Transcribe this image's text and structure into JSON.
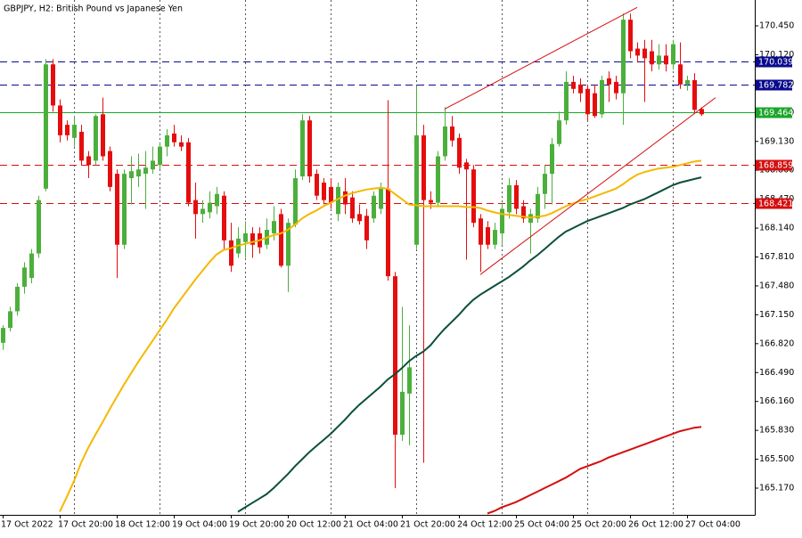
{
  "chart_data": {
    "type": "candlestick",
    "title": "GBPJPY, H2:  British Pound vs Japanese Yen",
    "categories": [
      "17 Oct 2022",
      null,
      null,
      null,
      null,
      null,
      null,
      null,
      "17 Oct 20:00",
      null,
      null,
      null,
      null,
      null,
      null,
      null,
      "18 Oct 12:00",
      null,
      null,
      null,
      null,
      null,
      null,
      null,
      "19 Oct 04:00",
      null,
      null,
      null,
      null,
      null,
      null,
      null,
      "19 Oct 20:00",
      null,
      null,
      null,
      null,
      null,
      null,
      null,
      "20 Oct 12:00",
      null,
      null,
      null,
      null,
      null,
      null,
      null,
      "21 Oct 04:00",
      null,
      null,
      null,
      null,
      null,
      null,
      null,
      "21 Oct 20:00",
      null,
      null,
      null,
      null,
      null,
      null,
      null,
      "24 Oct 12:00",
      null,
      null,
      null,
      null,
      null,
      null,
      null,
      "25 Oct 04:00",
      null,
      null,
      null,
      null,
      null,
      null,
      null,
      "25 Oct 20:00",
      null,
      null,
      null,
      null,
      null,
      null,
      null,
      "26 Oct 12:00",
      null,
      null,
      null,
      null,
      null,
      null,
      null,
      "27 Oct 04:00",
      null,
      null
    ],
    "open": [
      166.83,
      167.0,
      167.19,
      167.47,
      167.57,
      167.85,
      168.59,
      170.01,
      169.54,
      169.32,
      169.17,
      169.24,
      168.96,
      168.91,
      169.44,
      169.02,
      168.76,
      167.95,
      168.71,
      168.73,
      168.76,
      168.81,
      168.86,
      169.07,
      169.22,
      169.12,
      169.12,
      168.46,
      168.3,
      168.32,
      168.39,
      168.51,
      168.0,
      167.85,
      167.98,
      168.08,
      168.08,
      167.95,
      168.08,
      168.3,
      167.71,
      168.18,
      168.73,
      169.37,
      168.76,
      168.66,
      168.61,
      168.3,
      168.56,
      168.49,
      168.3,
      168.28,
      168.25,
      168.36,
      168.59,
      167.59,
      165.78,
      166.25,
      167.95,
      169.2,
      168.46,
      168.43,
      168.96,
      169.3,
      169.17,
      168.89,
      168.81,
      168.25,
      168.15,
      167.95,
      168.08,
      168.32,
      168.63,
      168.39,
      168.2,
      168.25,
      168.53,
      168.76,
      169.1,
      169.37,
      169.81,
      169.78,
      169.73,
      169.68,
      169.44,
      169.85,
      169.81,
      169.68,
      170.52,
      170.19,
      170.19,
      170.16,
      170.01,
      170.11,
      170.01,
      170.01,
      169.78,
      169.83,
      169.5
    ],
    "high": [
      167.03,
      167.24,
      167.51,
      167.75,
      167.9,
      168.51,
      170.07,
      170.07,
      169.61,
      169.37,
      169.42,
      169.32,
      169.02,
      169.44,
      169.63,
      169.07,
      168.81,
      168.81,
      168.96,
      168.99,
      169.02,
      169.07,
      169.12,
      169.27,
      169.32,
      169.2,
      169.17,
      168.66,
      168.46,
      168.56,
      168.61,
      168.56,
      168.2,
      168.15,
      168.22,
      168.15,
      168.15,
      168.25,
      168.39,
      168.36,
      168.25,
      168.81,
      169.44,
      169.42,
      168.81,
      168.71,
      168.71,
      168.66,
      168.71,
      168.56,
      168.41,
      168.36,
      168.56,
      168.66,
      169.6,
      167.64,
      167.24,
      167.03,
      169.76,
      169.32,
      168.56,
      169.02,
      169.52,
      169.42,
      169.22,
      168.93,
      168.86,
      168.3,
      168.22,
      168.2,
      168.43,
      168.71,
      168.69,
      168.46,
      168.36,
      168.61,
      168.86,
      169.17,
      169.47,
      169.93,
      169.88,
      169.85,
      169.78,
      169.78,
      169.88,
      169.93,
      169.88,
      170.59,
      170.59,
      170.26,
      170.29,
      170.29,
      170.24,
      170.24,
      170.29,
      170.26,
      169.88,
      169.91,
      169.52
    ],
    "low": [
      166.75,
      166.96,
      167.14,
      167.39,
      167.51,
      167.8,
      168.56,
      169.47,
      169.12,
      169.14,
      169.07,
      168.86,
      168.71,
      168.86,
      168.91,
      168.56,
      167.57,
      167.9,
      168.41,
      168.61,
      168.36,
      168.76,
      168.81,
      168.96,
      169.07,
      169.02,
      168.39,
      168.02,
      168.2,
      168.25,
      168.3,
      167.9,
      167.64,
      167.8,
      167.8,
      167.8,
      167.85,
      167.9,
      168.0,
      167.69,
      167.41,
      168.15,
      168.69,
      168.66,
      168.46,
      168.41,
      168.36,
      168.22,
      168.3,
      168.2,
      168.18,
      167.9,
      168.2,
      168.3,
      167.54,
      165.17,
      165.71,
      165.66,
      167.9,
      165.46,
      168.36,
      168.39,
      168.91,
      169.07,
      168.76,
      167.78,
      168.15,
      167.64,
      167.9,
      167.9,
      167.95,
      168.25,
      168.3,
      168.2,
      167.85,
      168.2,
      168.36,
      168.41,
      169.07,
      169.32,
      169.68,
      169.58,
      169.37,
      169.4,
      169.4,
      169.58,
      169.61,
      169.32,
      170.08,
      170.03,
      169.58,
      169.93,
      169.95,
      169.93,
      169.95,
      169.73,
      169.71,
      169.46,
      169.42
    ],
    "close": [
      167.0,
      167.19,
      167.47,
      167.69,
      167.85,
      168.46,
      170.01,
      169.54,
      169.2,
      169.2,
      169.32,
      168.91,
      168.86,
      169.42,
      168.96,
      168.61,
      167.95,
      168.76,
      168.79,
      168.81,
      168.83,
      168.91,
      169.07,
      169.2,
      169.12,
      169.07,
      168.43,
      168.3,
      168.36,
      168.43,
      168.53,
      168.0,
      167.71,
      168.02,
      168.08,
      167.95,
      167.92,
      168.12,
      168.22,
      167.71,
      168.2,
      168.71,
      169.37,
      168.73,
      168.51,
      168.46,
      168.43,
      168.61,
      168.41,
      168.25,
      168.22,
      168.0,
      168.51,
      168.59,
      167.59,
      165.78,
      166.27,
      166.55,
      169.2,
      168.46,
      168.43,
      168.96,
      169.3,
      169.14,
      168.83,
      168.81,
      168.2,
      167.95,
      167.95,
      168.12,
      168.36,
      168.63,
      168.36,
      168.25,
      168.3,
      168.53,
      168.76,
      169.1,
      169.37,
      169.81,
      169.73,
      169.68,
      169.44,
      169.42,
      169.83,
      169.78,
      169.68,
      170.52,
      170.16,
      170.11,
      170.08,
      170.01,
      170.11,
      170.01,
      170.24,
      169.78,
      169.83,
      169.49,
      169.44
    ],
    "up_color": "#4caf3c",
    "down_color": "#e50d0d",
    "series": [
      {
        "color": "#f5b800",
        "values": [
          null,
          null,
          null,
          null,
          null,
          null,
          null,
          null,
          164.9,
          165.07,
          165.25,
          165.46,
          165.63,
          165.78,
          165.92,
          166.07,
          166.21,
          166.35,
          166.48,
          166.61,
          166.73,
          166.85,
          166.97,
          167.09,
          167.22,
          167.33,
          167.44,
          167.55,
          167.65,
          167.75,
          167.84,
          167.89,
          167.91,
          167.94,
          167.96,
          167.98,
          168.0,
          168.03,
          168.06,
          168.08,
          168.12,
          168.18,
          168.25,
          168.3,
          168.34,
          168.39,
          168.43,
          168.47,
          168.51,
          168.54,
          168.56,
          168.58,
          168.59,
          168.6,
          168.59,
          168.53,
          168.47,
          168.41,
          168.4,
          168.39,
          168.39,
          168.39,
          168.39,
          168.39,
          168.39,
          168.38,
          168.38,
          168.37,
          168.34,
          168.32,
          168.3,
          168.29,
          168.28,
          168.27,
          168.26,
          168.27,
          168.28,
          168.31,
          168.35,
          168.39,
          168.42,
          168.45,
          168.47,
          168.5,
          168.53,
          168.56,
          168.59,
          168.64,
          168.7,
          168.75,
          168.78,
          168.8,
          168.82,
          168.83,
          168.84,
          168.86,
          168.88,
          168.9,
          168.91
        ]
      },
      {
        "color": "#0b4f3c",
        "values": [
          null,
          null,
          null,
          null,
          null,
          null,
          null,
          null,
          null,
          null,
          null,
          null,
          null,
          null,
          null,
          null,
          null,
          null,
          null,
          null,
          null,
          null,
          null,
          null,
          null,
          null,
          null,
          null,
          null,
          null,
          null,
          null,
          null,
          164.9,
          164.95,
          165.0,
          165.05,
          165.1,
          165.17,
          165.25,
          165.33,
          165.42,
          165.5,
          165.58,
          165.65,
          165.72,
          165.79,
          165.87,
          165.95,
          166.04,
          166.12,
          166.19,
          166.26,
          166.33,
          166.41,
          166.47,
          166.54,
          166.62,
          166.68,
          166.73,
          166.8,
          166.9,
          166.99,
          167.07,
          167.15,
          167.24,
          167.32,
          167.38,
          167.43,
          167.48,
          167.53,
          167.58,
          167.64,
          167.7,
          167.77,
          167.83,
          167.9,
          167.97,
          168.04,
          168.1,
          168.14,
          168.18,
          168.22,
          168.25,
          168.28,
          168.31,
          168.34,
          168.37,
          168.41,
          168.44,
          168.47,
          168.51,
          168.55,
          168.59,
          168.63,
          168.66,
          168.68,
          168.7,
          168.72
        ]
      },
      {
        "color": "#d40f0f",
        "values": [
          null,
          null,
          null,
          null,
          null,
          null,
          null,
          null,
          null,
          null,
          null,
          null,
          null,
          null,
          null,
          null,
          null,
          null,
          null,
          null,
          null,
          null,
          null,
          null,
          null,
          null,
          null,
          null,
          null,
          null,
          null,
          null,
          null,
          null,
          null,
          null,
          null,
          null,
          null,
          null,
          null,
          null,
          null,
          null,
          null,
          null,
          null,
          null,
          null,
          null,
          null,
          null,
          null,
          null,
          null,
          null,
          null,
          null,
          null,
          null,
          null,
          null,
          null,
          null,
          null,
          null,
          null,
          null,
          164.88,
          164.91,
          164.95,
          164.98,
          165.01,
          165.05,
          165.09,
          165.13,
          165.17,
          165.21,
          165.25,
          165.29,
          165.34,
          165.39,
          165.42,
          165.45,
          165.48,
          165.52,
          165.55,
          165.58,
          165.61,
          165.64,
          165.67,
          165.7,
          165.73,
          165.76,
          165.79,
          165.82,
          165.84,
          165.86,
          165.87
        ]
      }
    ],
    "trendlines": [
      {
        "color": "#d40f0f",
        "x": [
          62,
          89
        ],
        "y": [
          169.5,
          170.66
        ]
      },
      {
        "color": "#d40f0f",
        "x": [
          67,
          100
        ],
        "y": [
          167.61,
          169.63
        ]
      }
    ],
    "levels": [
      {
        "value": 170.039,
        "color": "#0a0a8c",
        "style": "dashed"
      },
      {
        "value": 169.782,
        "color": "#0a0a8c",
        "style": "dashed"
      },
      {
        "value": 169.464,
        "color": "#1aa52a",
        "style": "solid"
      },
      {
        "value": 168.859,
        "color": "#d40f0f",
        "style": "dashed"
      },
      {
        "value": 168.421,
        "color": "#d40f0f",
        "style": "dashed"
      }
    ],
    "ylim": [
      164.865,
      170.745
    ],
    "yticks": [
      {
        "value": 165.17,
        "label": "165.170"
      },
      {
        "value": 165.5,
        "label": "165.500"
      },
      {
        "value": 165.83,
        "label": "165.830"
      },
      {
        "value": 166.16,
        "label": "166.160"
      },
      {
        "value": 166.49,
        "label": "166.490"
      },
      {
        "value": 166.82,
        "label": "166.820"
      },
      {
        "value": 167.15,
        "label": "167.150"
      },
      {
        "value": 167.48,
        "label": "167.480"
      },
      {
        "value": 167.81,
        "label": "167.810"
      },
      {
        "value": 168.14,
        "label": "168.140"
      },
      {
        "value": 168.47,
        "label": "168.470"
      },
      {
        "value": 168.8,
        "label": "168.800"
      },
      {
        "value": 169.13,
        "label": "169.130"
      },
      {
        "value": 169.46,
        "label": "169.460"
      },
      {
        "value": 169.79,
        "label": "169.790"
      },
      {
        "value": 170.12,
        "label": "170.120"
      },
      {
        "value": 170.45,
        "label": "170.450"
      }
    ]
  }
}
